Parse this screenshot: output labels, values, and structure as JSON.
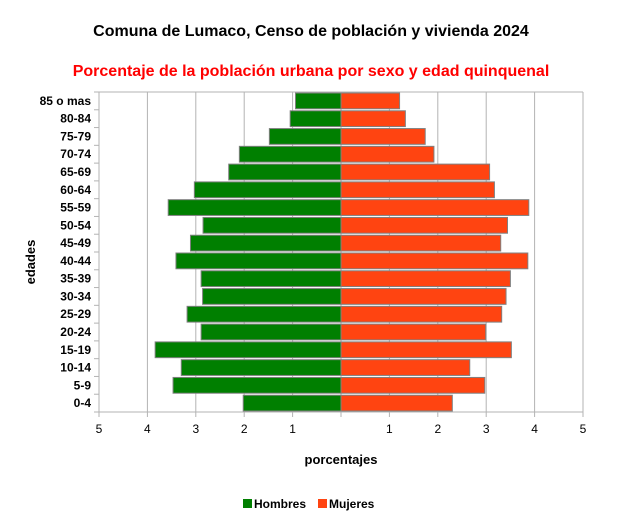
{
  "chart_data": {
    "type": "bar",
    "orientation": "horizontal-pyramid",
    "title": "Comuna de Lumaco, Censo de población y vivienda 2024",
    "subtitle": "Porcentaje de la población urbana por sexo y edad quinquenal",
    "xlabel": "porcentajes",
    "ylabel": "edades",
    "xlim": [
      -5,
      5
    ],
    "xticks": [
      -5,
      -4,
      -3,
      -2,
      -1,
      0,
      1,
      2,
      3,
      4,
      5
    ],
    "xtick_labels": [
      "5",
      "4",
      "3",
      "2",
      "1",
      "",
      "1",
      "2",
      "3",
      "4",
      "5"
    ],
    "grid": true,
    "legend_position": "bottom",
    "categories": [
      "85 o mas",
      "80-84",
      "75-79",
      "70-74",
      "65-69",
      "60-64",
      "55-59",
      "50-54",
      "45-49",
      "40-44",
      "35-39",
      "30-34",
      "25-29",
      "20-24",
      "15-19",
      "10-14",
      "5-9",
      "0-4"
    ],
    "series": [
      {
        "name": "Hombres",
        "color": "#007f00",
        "side": "left",
        "values": [
          0.94,
          1.05,
          1.48,
          2.1,
          2.32,
          3.03,
          3.57,
          2.85,
          3.11,
          3.41,
          2.89,
          2.86,
          3.18,
          2.89,
          3.84,
          3.3,
          3.47,
          2.02
        ]
      },
      {
        "name": "Mujeres",
        "color": "#ff4411",
        "side": "right",
        "values": [
          1.21,
          1.33,
          1.74,
          1.92,
          3.07,
          3.17,
          3.88,
          3.44,
          3.3,
          3.86,
          3.5,
          3.41,
          3.32,
          2.99,
          3.52,
          2.66,
          2.97,
          2.3
        ]
      }
    ]
  }
}
